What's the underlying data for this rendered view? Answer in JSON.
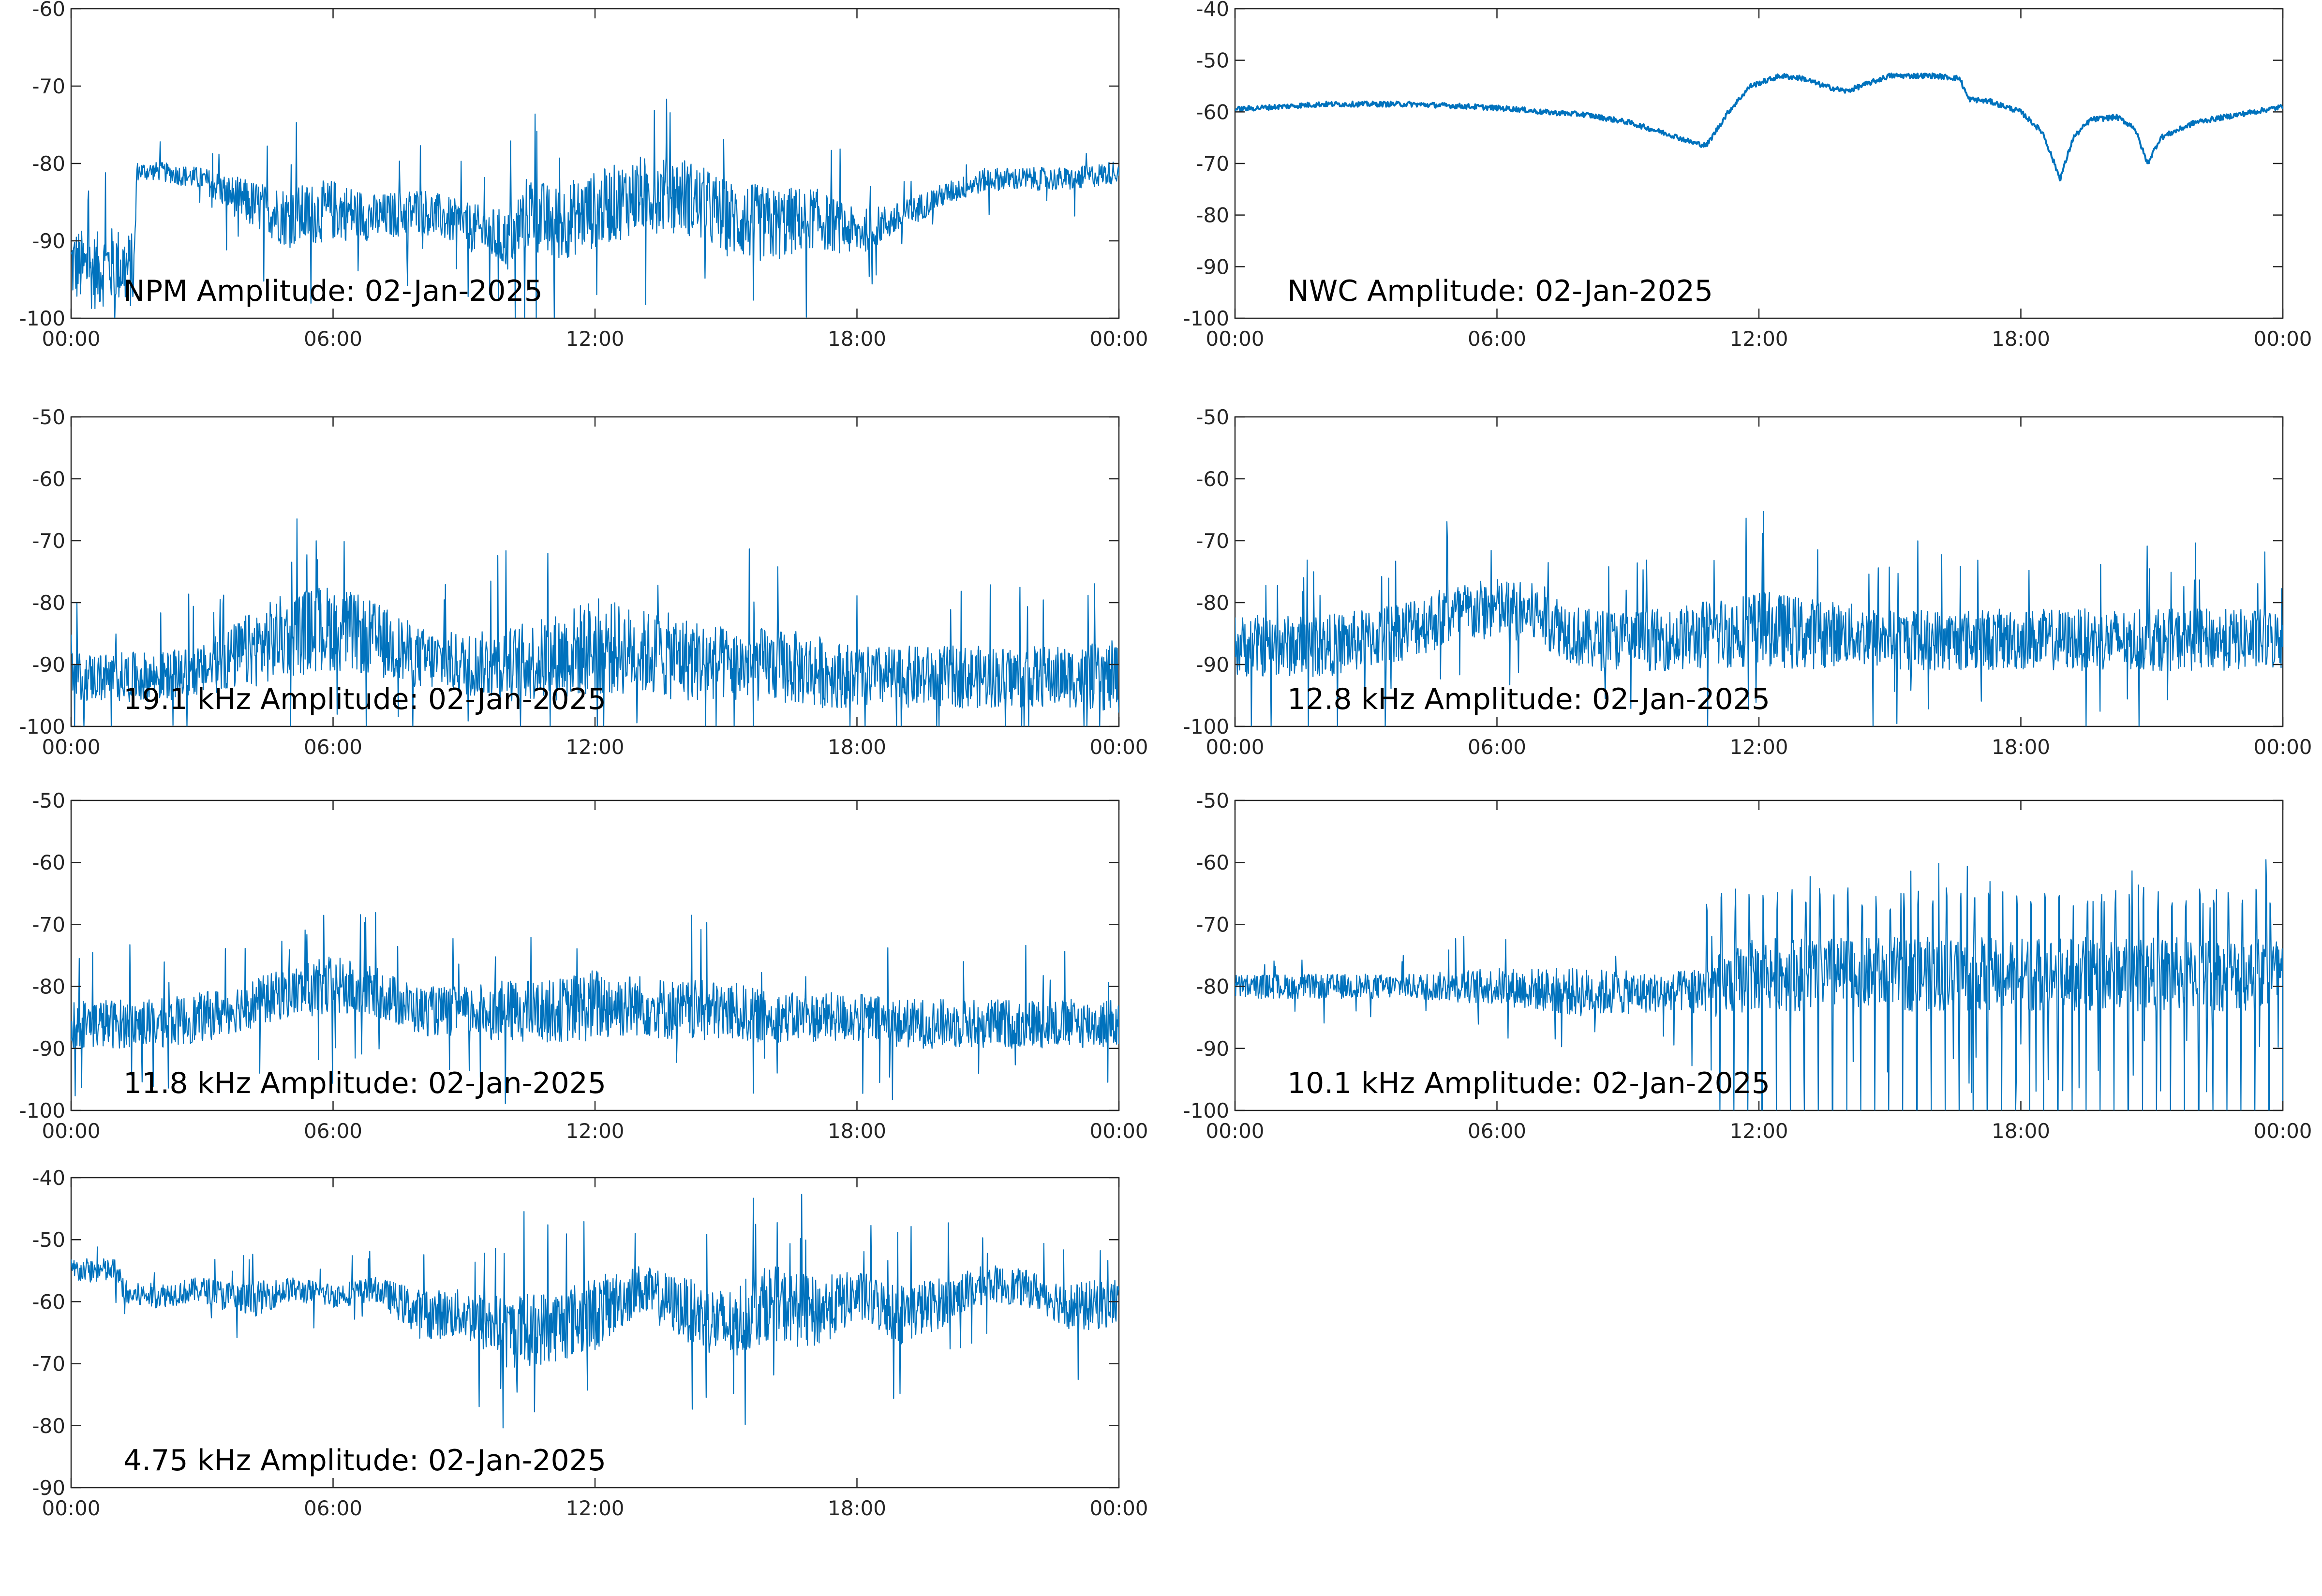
{
  "figure": {
    "line_color": "#0072BD",
    "axis_color": "#262626",
    "background": "#ffffff"
  },
  "chart_data": [
    {
      "type": "line",
      "title": "",
      "annotation": "NPM Amplitude: 02-Jan-2025",
      "xlabel": "",
      "ylabel": "",
      "xticklabels": [
        "00:00",
        "06:00",
        "12:00",
        "18:00",
        "00:00"
      ],
      "xlim_hours": [
        0,
        24
      ],
      "ylim": [
        -100,
        -60
      ],
      "yticks": [
        -100,
        -90,
        -80,
        -70,
        -60
      ],
      "grid": false,
      "series": [
        {
          "x_hours": [
            0,
            0.5,
            1,
            1.45,
            1.5,
            2,
            3,
            4,
            5,
            6,
            7,
            8,
            9,
            10,
            10.5,
            11,
            12,
            13,
            14,
            15,
            16,
            17,
            18,
            19,
            20,
            21,
            22,
            23,
            24
          ],
          "y": [
            -93,
            -94,
            -93,
            -94,
            -81,
            -81,
            -82,
            -85,
            -87,
            -86,
            -87,
            -86,
            -88,
            -90,
            -86,
            -88,
            -86,
            -84,
            -84,
            -87,
            -88,
            -87,
            -89,
            -87,
            -84,
            -82,
            -82,
            -82,
            -81
          ],
          "spread": [
            5,
            5,
            5,
            5,
            1.2,
            1.2,
            1.5,
            3,
            4,
            4,
            3,
            3,
            3,
            4,
            5,
            5,
            5,
            5,
            5,
            5,
            5,
            4,
            3,
            2,
            1.5,
            1.5,
            1.5,
            1.5,
            1.5
          ]
        }
      ]
    },
    {
      "type": "line",
      "title": "",
      "annotation": "NWC Amplitude: 02-Jan-2025",
      "xlabel": "",
      "ylabel": "",
      "xticklabels": [
        "00:00",
        "06:00",
        "12:00",
        "18:00",
        "00:00"
      ],
      "xlim_hours": [
        0,
        24
      ],
      "ylim": [
        -100,
        -40
      ],
      "yticks": [
        -100,
        -90,
        -80,
        -70,
        -60,
        -50,
        -40
      ],
      "grid": false,
      "series": [
        {
          "x_hours": [
            0,
            1,
            2,
            4,
            5.5,
            6.5,
            7,
            8,
            9,
            10,
            10.5,
            10.8,
            11.3,
            11.8,
            12.5,
            13,
            13.5,
            14,
            15,
            16,
            16.6,
            16.8,
            17.3,
            18,
            18.5,
            18.9,
            19.2,
            19.6,
            20.2,
            20.6,
            20.9,
            21.2,
            22,
            23,
            24
          ],
          "y": [
            -59.5,
            -59,
            -58.5,
            -58.5,
            -59,
            -59.5,
            -60,
            -60.5,
            -62,
            -64.5,
            -66,
            -66.5,
            -60,
            -55,
            -53,
            -53.5,
            -55,
            -56,
            -53,
            -53,
            -53.5,
            -57.5,
            -58,
            -60,
            -64,
            -73,
            -65,
            -61.5,
            -61,
            -63,
            -70,
            -65,
            -62,
            -60.5,
            -59
          ]
        }
      ]
    },
    {
      "type": "line",
      "title": "",
      "annotation": "19.1 kHz Amplitude: 02-Jan-2025",
      "xlabel": "",
      "ylabel": "",
      "xticklabels": [
        "00:00",
        "06:00",
        "12:00",
        "18:00",
        "00:00"
      ],
      "xlim_hours": [
        0,
        24
      ],
      "ylim": [
        -100,
        -50
      ],
      "yticks": [
        -100,
        -90,
        -80,
        -70,
        -60,
        -50
      ],
      "grid": false,
      "series": [
        {
          "x_hours": [
            0,
            1,
            2,
            3,
            4,
            5,
            6,
            7,
            8,
            9,
            10,
            11,
            12,
            13,
            14,
            15,
            16,
            17,
            18,
            19,
            20,
            21,
            22,
            23,
            24
          ],
          "y": [
            -92,
            -92,
            -92,
            -91,
            -88,
            -85,
            -84,
            -86,
            -89,
            -90,
            -90,
            -89,
            -87,
            -88,
            -89,
            -90,
            -90,
            -91,
            -92,
            -92,
            -92,
            -92,
            -92,
            -92,
            -92
          ],
          "spread": [
            4,
            4,
            4,
            4,
            6,
            7,
            7,
            6,
            5,
            5,
            6,
            7,
            8,
            7,
            7,
            6,
            6,
            6,
            5,
            5,
            5,
            5,
            5,
            5,
            6
          ]
        }
      ]
    },
    {
      "type": "line",
      "title": "",
      "annotation": "12.8 kHz Amplitude: 02-Jan-2025",
      "xlabel": "",
      "ylabel": "",
      "xticklabels": [
        "00:00",
        "06:00",
        "12:00",
        "18:00",
        "00:00"
      ],
      "xlim_hours": [
        0,
        24
      ],
      "ylim": [
        -100,
        -50
      ],
      "yticks": [
        -100,
        -90,
        -80,
        -70,
        -60,
        -50
      ],
      "grid": false,
      "series": [
        {
          "x_hours": [
            0,
            1,
            2,
            3,
            4,
            5,
            6,
            7,
            8,
            9,
            10,
            11,
            12,
            13,
            14,
            15,
            16,
            17,
            18,
            19,
            20,
            21,
            22,
            23,
            24
          ],
          "y": [
            -87,
            -87,
            -87,
            -86,
            -84,
            -82,
            -81,
            -82,
            -86,
            -86,
            -86,
            -85,
            -84,
            -85,
            -85,
            -86,
            -86,
            -86,
            -86,
            -86,
            -86,
            -86,
            -86,
            -86,
            -86
          ],
          "spread": [
            5,
            5,
            5,
            5,
            5,
            5,
            5,
            5,
            5,
            5,
            5,
            6,
            6,
            6,
            5,
            5,
            5,
            5,
            5,
            5,
            5,
            5,
            5,
            5,
            5
          ]
        }
      ]
    },
    {
      "type": "line",
      "title": "",
      "annotation": "11.8 kHz Amplitude: 02-Jan-2025",
      "xlabel": "",
      "ylabel": "",
      "xticklabels": [
        "00:00",
        "06:00",
        "12:00",
        "18:00",
        "00:00"
      ],
      "xlim_hours": [
        0,
        24
      ],
      "ylim": [
        -100,
        -50
      ],
      "yticks": [
        -100,
        -90,
        -80,
        -70,
        -60,
        -50
      ],
      "grid": false,
      "series": [
        {
          "x_hours": [
            0,
            1,
            2,
            3,
            4,
            5,
            6,
            7,
            8,
            9,
            10,
            11,
            12,
            13,
            14,
            15,
            16,
            17,
            18,
            19,
            20,
            21,
            22,
            23,
            24
          ],
          "y": [
            -86,
            -86,
            -86,
            -85,
            -83,
            -81,
            -80,
            -81,
            -84,
            -84,
            -84,
            -84,
            -83,
            -83,
            -84,
            -84,
            -85,
            -85,
            -85,
            -86,
            -86,
            -86,
            -86,
            -86,
            -86
          ],
          "spread": [
            4,
            4,
            4,
            4,
            4,
            4,
            5,
            4,
            4,
            4,
            5,
            5,
            6,
            5,
            5,
            5,
            4,
            4,
            4,
            4,
            4,
            4,
            4,
            4,
            4
          ]
        }
      ]
    },
    {
      "type": "line",
      "title": "",
      "annotation": "10.1 kHz Amplitude: 02-Jan-2025",
      "xlabel": "",
      "ylabel": "",
      "xticklabels": [
        "00:00",
        "06:00",
        "12:00",
        "18:00",
        "00:00"
      ],
      "xlim_hours": [
        0,
        24
      ],
      "ylim": [
        -100,
        -50
      ],
      "yticks": [
        -100,
        -90,
        -80,
        -70,
        -60,
        -50
      ],
      "grid": false,
      "series": [
        {
          "x_hours": [
            0,
            2,
            4,
            6,
            8,
            10,
            11,
            12,
            14,
            16,
            18,
            20,
            22,
            24
          ],
          "y": [
            -80,
            -80,
            -80,
            -80,
            -81,
            -81,
            -80,
            -78,
            -78,
            -78,
            -78,
            -78,
            -78,
            -78
          ],
          "spread": [
            2,
            2,
            2,
            3,
            4,
            3,
            5,
            6,
            6,
            6,
            6,
            6,
            6,
            6
          ],
          "spikes_start_hours": 10.8
        }
      ]
    },
    {
      "type": "line",
      "title": "",
      "annotation": "4.75 kHz Amplitude: 02-Jan-2025",
      "xlabel": "",
      "ylabel": "",
      "xticklabels": [
        "00:00",
        "06:00",
        "12:00",
        "18:00",
        "00:00"
      ],
      "xlim_hours": [
        0,
        24
      ],
      "ylim": [
        -90,
        -40
      ],
      "yticks": [
        -90,
        -80,
        -70,
        -60,
        -50,
        -40
      ],
      "grid": false,
      "series": [
        {
          "x_hours": [
            0,
            1,
            1.3,
            2,
            3,
            4,
            5,
            6,
            7,
            8,
            9,
            10,
            11,
            12,
            13,
            14,
            15,
            16,
            17,
            18,
            19,
            20,
            21,
            22,
            23,
            24
          ],
          "y": [
            -55,
            -55,
            -59,
            -59,
            -58,
            -60,
            -58,
            -59,
            -58,
            -62,
            -62,
            -65,
            -64,
            -62,
            -58,
            -61,
            -64,
            -60,
            -62,
            -59,
            -62,
            -60,
            -57,
            -58,
            -61,
            -60
          ],
          "spread": [
            2,
            2,
            2,
            2,
            2,
            3,
            2,
            2,
            2,
            4,
            4,
            6,
            6,
            6,
            4,
            5,
            6,
            6,
            6,
            4,
            5,
            4,
            3,
            3,
            4,
            4
          ]
        }
      ]
    }
  ]
}
